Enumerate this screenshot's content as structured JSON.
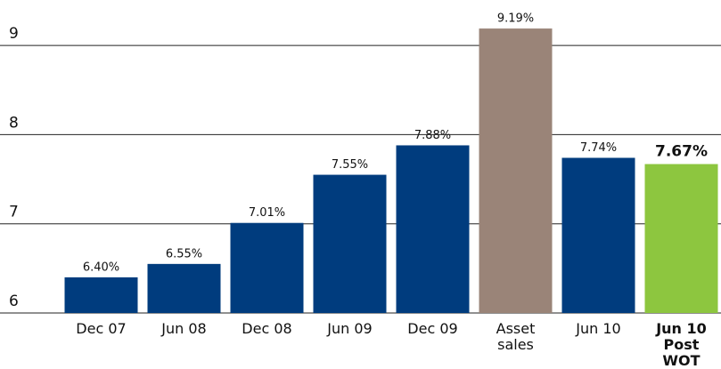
{
  "chart_data": {
    "type": "bar",
    "categories": [
      "Dec 07",
      "Jun 08",
      "Dec 08",
      "Jun 09",
      "Dec 09",
      "Asset sales",
      "Jun 10",
      "Jun 10 Post WOT"
    ],
    "values": [
      6.4,
      6.55,
      7.01,
      7.55,
      7.88,
      9.19,
      7.74,
      7.67
    ],
    "value_labels": [
      "6.40%",
      "6.55%",
      "7.01%",
      "7.55%",
      "7.88%",
      "9.19%",
      "7.74%",
      "7.67%"
    ],
    "colors": [
      "#003c7e",
      "#003c7e",
      "#003c7e",
      "#003c7e",
      "#003c7e",
      "#9a8478",
      "#003c7e",
      "#8dc63f"
    ],
    "ylim": [
      6,
      9.5
    ],
    "yticks": [
      6,
      7,
      8,
      9
    ],
    "grid": true
  }
}
